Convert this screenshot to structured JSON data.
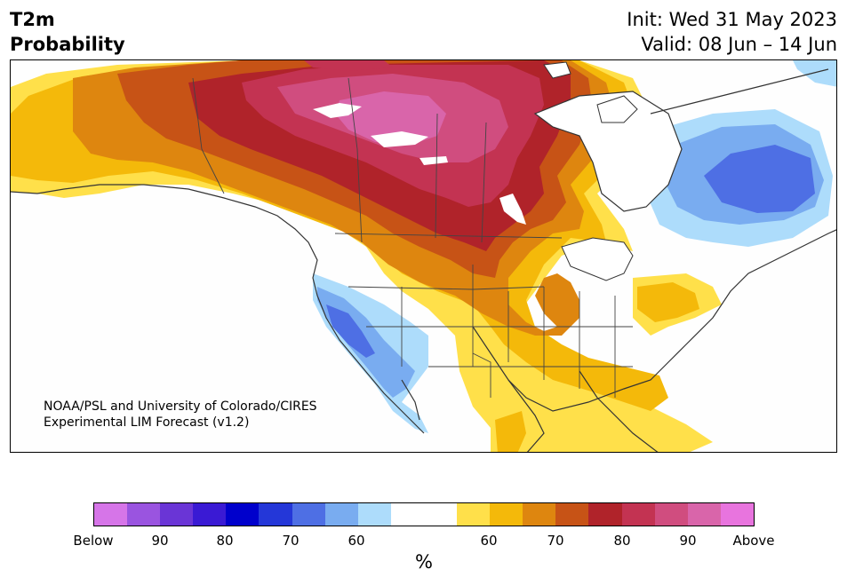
{
  "header": {
    "title_line1": "T2m",
    "title_line2": "Probability",
    "init": "Init: Wed 31 May 2023",
    "valid": "Valid: 08 Jun – 14 Jun"
  },
  "credit": {
    "line1": "NOAA/PSL and University of Colorado/CIRES",
    "line2": "Experimental LIM Forecast (v1.2)"
  },
  "colorbar": {
    "unit": "%",
    "colors": [
      "#d675e8",
      "#9a54e0",
      "#6a35d6",
      "#3a1ad4",
      "#0000cc",
      "#2437d8",
      "#4e6fe4",
      "#79acf0",
      "#addcfb",
      "#ffffff",
      "#ffffff",
      "#ffe04a",
      "#f4b90a",
      "#de860f",
      "#c75316",
      "#b0232a",
      "#c33352",
      "#d04d7f",
      "#d965aa",
      "#e874de"
    ],
    "labels": [
      "Below",
      "90",
      "80",
      "70",
      "60",
      "60",
      "70",
      "80",
      "90",
      "Above"
    ]
  },
  "map": {
    "land_color": "#fefefe",
    "border_color": "#333333"
  }
}
